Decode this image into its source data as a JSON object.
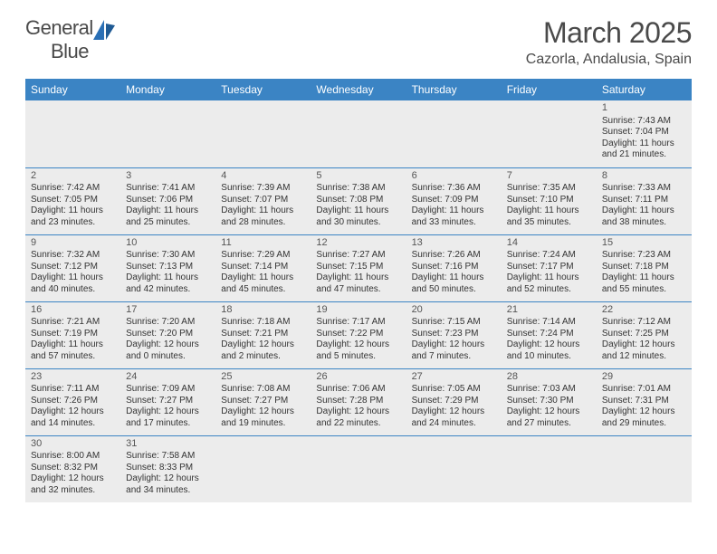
{
  "brand": {
    "part1": "General",
    "part2": "Blue"
  },
  "title": "March 2025",
  "location": "Cazorla, Andalusia, Spain",
  "colors": {
    "header_bg": "#3b84c4",
    "header_text": "#ffffff",
    "cell_bg": "#ececec",
    "border": "#3b84c4",
    "text": "#333333",
    "title_text": "#4a4a4a",
    "logo_blue": "#2a6fb5"
  },
  "typography": {
    "title_fontsize": 32,
    "location_fontsize": 16,
    "dayheader_fontsize": 12,
    "cell_fontsize": 10
  },
  "day_headers": [
    "Sunday",
    "Monday",
    "Tuesday",
    "Wednesday",
    "Thursday",
    "Friday",
    "Saturday"
  ],
  "weeks": [
    [
      null,
      null,
      null,
      null,
      null,
      null,
      {
        "n": "1",
        "sunrise": "Sunrise: 7:43 AM",
        "sunset": "Sunset: 7:04 PM",
        "daylight": "Daylight: 11 hours and 21 minutes."
      }
    ],
    [
      {
        "n": "2",
        "sunrise": "Sunrise: 7:42 AM",
        "sunset": "Sunset: 7:05 PM",
        "daylight": "Daylight: 11 hours and 23 minutes."
      },
      {
        "n": "3",
        "sunrise": "Sunrise: 7:41 AM",
        "sunset": "Sunset: 7:06 PM",
        "daylight": "Daylight: 11 hours and 25 minutes."
      },
      {
        "n": "4",
        "sunrise": "Sunrise: 7:39 AM",
        "sunset": "Sunset: 7:07 PM",
        "daylight": "Daylight: 11 hours and 28 minutes."
      },
      {
        "n": "5",
        "sunrise": "Sunrise: 7:38 AM",
        "sunset": "Sunset: 7:08 PM",
        "daylight": "Daylight: 11 hours and 30 minutes."
      },
      {
        "n": "6",
        "sunrise": "Sunrise: 7:36 AM",
        "sunset": "Sunset: 7:09 PM",
        "daylight": "Daylight: 11 hours and 33 minutes."
      },
      {
        "n": "7",
        "sunrise": "Sunrise: 7:35 AM",
        "sunset": "Sunset: 7:10 PM",
        "daylight": "Daylight: 11 hours and 35 minutes."
      },
      {
        "n": "8",
        "sunrise": "Sunrise: 7:33 AM",
        "sunset": "Sunset: 7:11 PM",
        "daylight": "Daylight: 11 hours and 38 minutes."
      }
    ],
    [
      {
        "n": "9",
        "sunrise": "Sunrise: 7:32 AM",
        "sunset": "Sunset: 7:12 PM",
        "daylight": "Daylight: 11 hours and 40 minutes."
      },
      {
        "n": "10",
        "sunrise": "Sunrise: 7:30 AM",
        "sunset": "Sunset: 7:13 PM",
        "daylight": "Daylight: 11 hours and 42 minutes."
      },
      {
        "n": "11",
        "sunrise": "Sunrise: 7:29 AM",
        "sunset": "Sunset: 7:14 PM",
        "daylight": "Daylight: 11 hours and 45 minutes."
      },
      {
        "n": "12",
        "sunrise": "Sunrise: 7:27 AM",
        "sunset": "Sunset: 7:15 PM",
        "daylight": "Daylight: 11 hours and 47 minutes."
      },
      {
        "n": "13",
        "sunrise": "Sunrise: 7:26 AM",
        "sunset": "Sunset: 7:16 PM",
        "daylight": "Daylight: 11 hours and 50 minutes."
      },
      {
        "n": "14",
        "sunrise": "Sunrise: 7:24 AM",
        "sunset": "Sunset: 7:17 PM",
        "daylight": "Daylight: 11 hours and 52 minutes."
      },
      {
        "n": "15",
        "sunrise": "Sunrise: 7:23 AM",
        "sunset": "Sunset: 7:18 PM",
        "daylight": "Daylight: 11 hours and 55 minutes."
      }
    ],
    [
      {
        "n": "16",
        "sunrise": "Sunrise: 7:21 AM",
        "sunset": "Sunset: 7:19 PM",
        "daylight": "Daylight: 11 hours and 57 minutes."
      },
      {
        "n": "17",
        "sunrise": "Sunrise: 7:20 AM",
        "sunset": "Sunset: 7:20 PM",
        "daylight": "Daylight: 12 hours and 0 minutes."
      },
      {
        "n": "18",
        "sunrise": "Sunrise: 7:18 AM",
        "sunset": "Sunset: 7:21 PM",
        "daylight": "Daylight: 12 hours and 2 minutes."
      },
      {
        "n": "19",
        "sunrise": "Sunrise: 7:17 AM",
        "sunset": "Sunset: 7:22 PM",
        "daylight": "Daylight: 12 hours and 5 minutes."
      },
      {
        "n": "20",
        "sunrise": "Sunrise: 7:15 AM",
        "sunset": "Sunset: 7:23 PM",
        "daylight": "Daylight: 12 hours and 7 minutes."
      },
      {
        "n": "21",
        "sunrise": "Sunrise: 7:14 AM",
        "sunset": "Sunset: 7:24 PM",
        "daylight": "Daylight: 12 hours and 10 minutes."
      },
      {
        "n": "22",
        "sunrise": "Sunrise: 7:12 AM",
        "sunset": "Sunset: 7:25 PM",
        "daylight": "Daylight: 12 hours and 12 minutes."
      }
    ],
    [
      {
        "n": "23",
        "sunrise": "Sunrise: 7:11 AM",
        "sunset": "Sunset: 7:26 PM",
        "daylight": "Daylight: 12 hours and 14 minutes."
      },
      {
        "n": "24",
        "sunrise": "Sunrise: 7:09 AM",
        "sunset": "Sunset: 7:27 PM",
        "daylight": "Daylight: 12 hours and 17 minutes."
      },
      {
        "n": "25",
        "sunrise": "Sunrise: 7:08 AM",
        "sunset": "Sunset: 7:27 PM",
        "daylight": "Daylight: 12 hours and 19 minutes."
      },
      {
        "n": "26",
        "sunrise": "Sunrise: 7:06 AM",
        "sunset": "Sunset: 7:28 PM",
        "daylight": "Daylight: 12 hours and 22 minutes."
      },
      {
        "n": "27",
        "sunrise": "Sunrise: 7:05 AM",
        "sunset": "Sunset: 7:29 PM",
        "daylight": "Daylight: 12 hours and 24 minutes."
      },
      {
        "n": "28",
        "sunrise": "Sunrise: 7:03 AM",
        "sunset": "Sunset: 7:30 PM",
        "daylight": "Daylight: 12 hours and 27 minutes."
      },
      {
        "n": "29",
        "sunrise": "Sunrise: 7:01 AM",
        "sunset": "Sunset: 7:31 PM",
        "daylight": "Daylight: 12 hours and 29 minutes."
      }
    ],
    [
      {
        "n": "30",
        "sunrise": "Sunrise: 8:00 AM",
        "sunset": "Sunset: 8:32 PM",
        "daylight": "Daylight: 12 hours and 32 minutes."
      },
      {
        "n": "31",
        "sunrise": "Sunrise: 7:58 AM",
        "sunset": "Sunset: 8:33 PM",
        "daylight": "Daylight: 12 hours and 34 minutes."
      },
      null,
      null,
      null,
      null,
      null
    ]
  ]
}
